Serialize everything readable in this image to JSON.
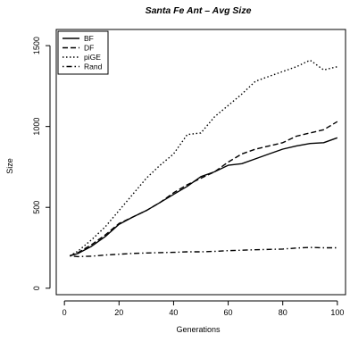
{
  "chart_data": {
    "type": "line",
    "title": "Santa Fe Ant – Avg Size",
    "xlabel": "Generations",
    "ylabel": "Size",
    "xlim": [
      -3,
      103
    ],
    "ylim": [
      -40,
      1600
    ],
    "xticks": [
      0,
      20,
      40,
      60,
      80,
      100
    ],
    "yticks": [
      0,
      500,
      1000,
      1500
    ],
    "x": [
      2,
      5,
      10,
      15,
      20,
      25,
      30,
      35,
      40,
      45,
      50,
      55,
      60,
      65,
      70,
      75,
      80,
      85,
      90,
      95,
      100
    ],
    "legend_position": "top-left",
    "grid": false,
    "series": [
      {
        "name": "BF",
        "line_style": "solid",
        "values": [
          200,
          215,
          260,
          320,
          395,
          440,
          480,
          530,
          580,
          630,
          690,
          720,
          760,
          770,
          800,
          830,
          860,
          880,
          895,
          900,
          930
        ]
      },
      {
        "name": "DF",
        "line_style": "dashed",
        "values": [
          200,
          220,
          270,
          330,
          400,
          440,
          480,
          530,
          590,
          640,
          680,
          720,
          780,
          830,
          860,
          880,
          900,
          940,
          960,
          980,
          1030
        ]
      },
      {
        "name": "piGE",
        "line_style": "dotted",
        "values": [
          200,
          230,
          300,
          380,
          480,
          580,
          680,
          760,
          830,
          950,
          960,
          1060,
          1130,
          1200,
          1280,
          1310,
          1340,
          1370,
          1410,
          1350,
          1370
        ]
      },
      {
        "name": "Rand",
        "line_style": "dotdash",
        "values": [
          200,
          195,
          198,
          205,
          210,
          215,
          218,
          220,
          222,
          225,
          225,
          228,
          232,
          235,
          238,
          240,
          242,
          248,
          252,
          250,
          250
        ]
      }
    ]
  }
}
